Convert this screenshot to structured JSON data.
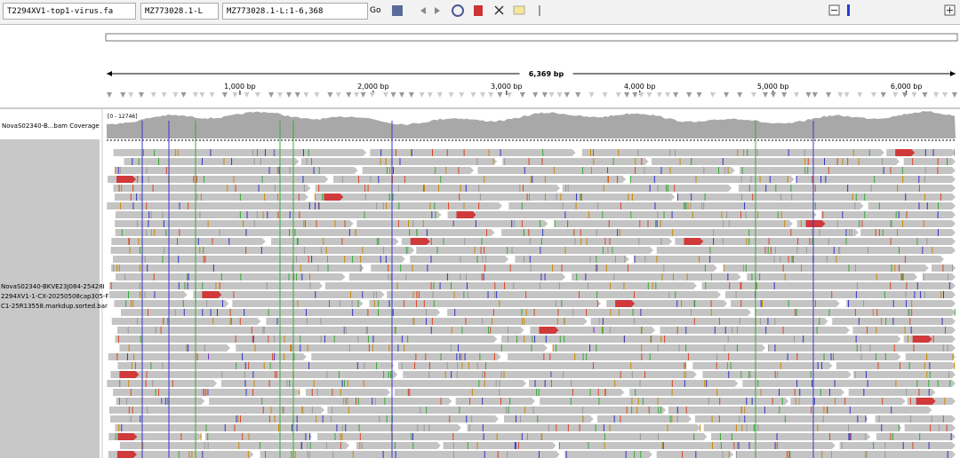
{
  "toolbar": {
    "genome": "T2294XV1-top1-virus.fa",
    "chromosome": "MZ773028.1-L",
    "locus": "MZ773028.1-L:1-6,368",
    "go": "Go"
  },
  "ruler": {
    "length": {
      "value": 6369,
      "label": "6,369 bp"
    },
    "ticks": [
      {
        "value": 1000,
        "label": "1,000 bp"
      },
      {
        "value": 2000,
        "label": "2,000 bp"
      },
      {
        "value": 3000,
        "label": "3,000 bp"
      },
      {
        "value": 4000,
        "label": "4,000 bp"
      },
      {
        "value": 5000,
        "label": "5,000 bp"
      },
      {
        "value": 6000,
        "label": "6,000 bp"
      }
    ]
  },
  "tracks": {
    "coverage": {
      "name": "NovaS02340-B...bam Coverage",
      "range": "[0 - 12746]"
    },
    "alignment": {
      "name_lines": [
        "NovaS02340-BKVE23J084-25428I",
        "2294XV1-1-CX-20250508cap305-F",
        "C1-25R13558.markdup.sorted.bar"
      ]
    }
  }
}
